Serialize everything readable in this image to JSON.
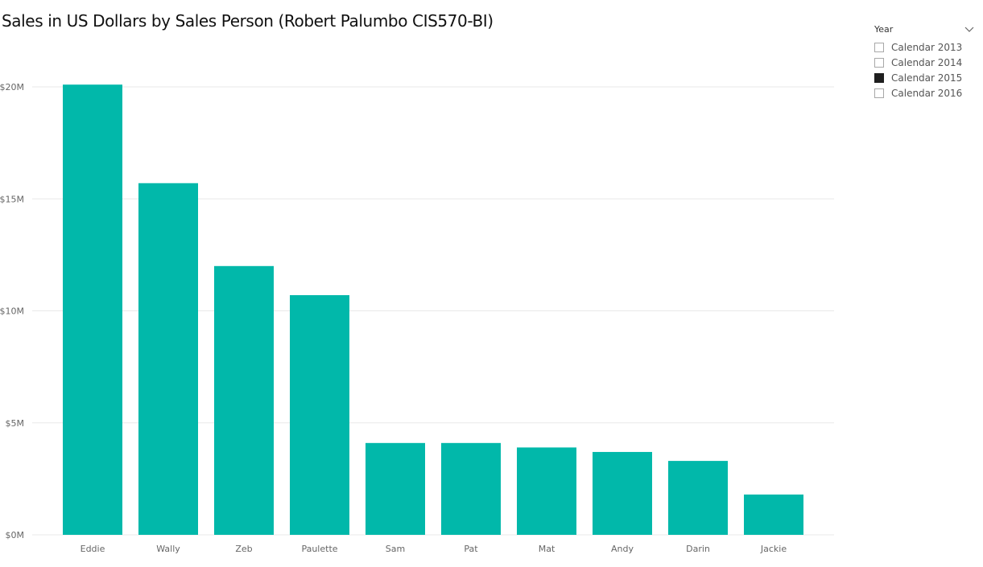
{
  "report": {
    "title": "Sales in US Dollars by Sales Person (Robert Palumbo CIS570-BI)"
  },
  "slicer": {
    "title": "Year",
    "chevron_icon": "chevron-down-icon",
    "items": [
      {
        "label": "Calendar 2013",
        "checked": false
      },
      {
        "label": "Calendar 2014",
        "checked": false
      },
      {
        "label": "Calendar 2015",
        "checked": true
      },
      {
        "label": "Calendar 2016",
        "checked": false
      }
    ]
  },
  "colors": {
    "bar": "#01b8aa",
    "grid": "#e8e8e8",
    "axis_text": "#666666",
    "slicer_checked": "#1f1f1f"
  },
  "chart_data": {
    "type": "bar",
    "title": "Sales in US Dollars by Sales Person (Robert Palumbo CIS570-BI)",
    "xlabel": "",
    "ylabel": "",
    "categories": [
      "Eddie",
      "Wally",
      "Zeb",
      "Paulette",
      "Sam",
      "Pat",
      "Mat",
      "Andy",
      "Darin",
      "Jackie"
    ],
    "values": [
      20.1,
      15.7,
      12.0,
      10.7,
      4.1,
      4.1,
      3.9,
      3.7,
      3.3,
      1.8
    ],
    "value_unit": "millions USD",
    "ylim": [
      0,
      20
    ],
    "yticks": [
      0,
      5,
      10,
      15,
      20
    ],
    "ytick_labels": [
      "$0M",
      "$5M",
      "$10M",
      "$15M",
      "$20M"
    ],
    "grid": true,
    "legend": "none"
  }
}
